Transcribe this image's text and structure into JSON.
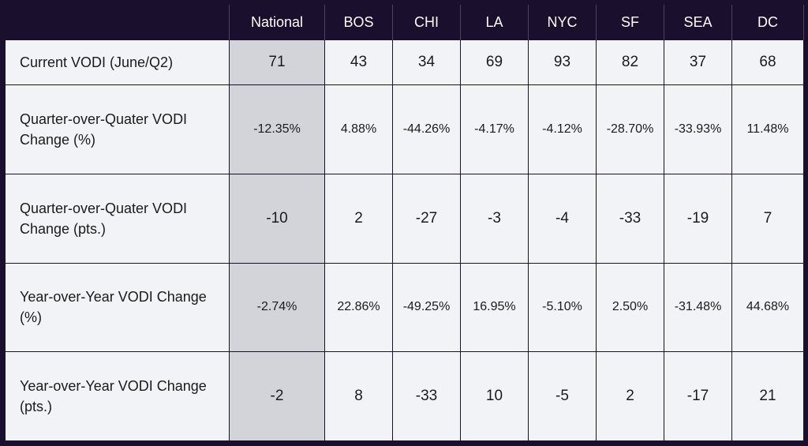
{
  "table": {
    "headers": [
      "National",
      "BOS",
      "CHI",
      "LA",
      "NYC",
      "SF",
      "SEA",
      "DC"
    ],
    "rows": [
      {
        "label": "Current VODI (June/Q2)",
        "format": "num",
        "cells": [
          "71",
          "43",
          "34",
          "69",
          "93",
          "82",
          "37",
          "68"
        ]
      },
      {
        "label": "Quarter-over-Quater VODI Change (%)",
        "format": "pct",
        "cells": [
          "-12.35%",
          "4.88%",
          "-44.26%",
          "-4.17%",
          "-4.12%",
          "-28.70%",
          "-33.93%",
          "11.48%"
        ]
      },
      {
        "label": "Quarter-over-Quater VODI Change (pts.)",
        "format": "num",
        "cells": [
          "-10",
          "2",
          "-27",
          "-3",
          "-4",
          "-33",
          "-19",
          "7"
        ]
      },
      {
        "label": "Year-over-Year VODI Change (%)",
        "format": "pct",
        "cells": [
          "-2.74%",
          "22.86%",
          "-49.25%",
          "16.95%",
          "-5.10%",
          "2.50%",
          "-31.48%",
          "44.68%"
        ]
      },
      {
        "label": "Year-over-Year VODI Change (pts.)",
        "format": "num",
        "cells": [
          "-2",
          "8",
          "-33",
          "10",
          "-5",
          "2",
          "-17",
          "21"
        ]
      }
    ]
  },
  "colors": {
    "frame": "#1b0f2e",
    "cell": "#f1f3f6",
    "national_highlight": "#d3d3da",
    "header_text": "#ffffff"
  }
}
